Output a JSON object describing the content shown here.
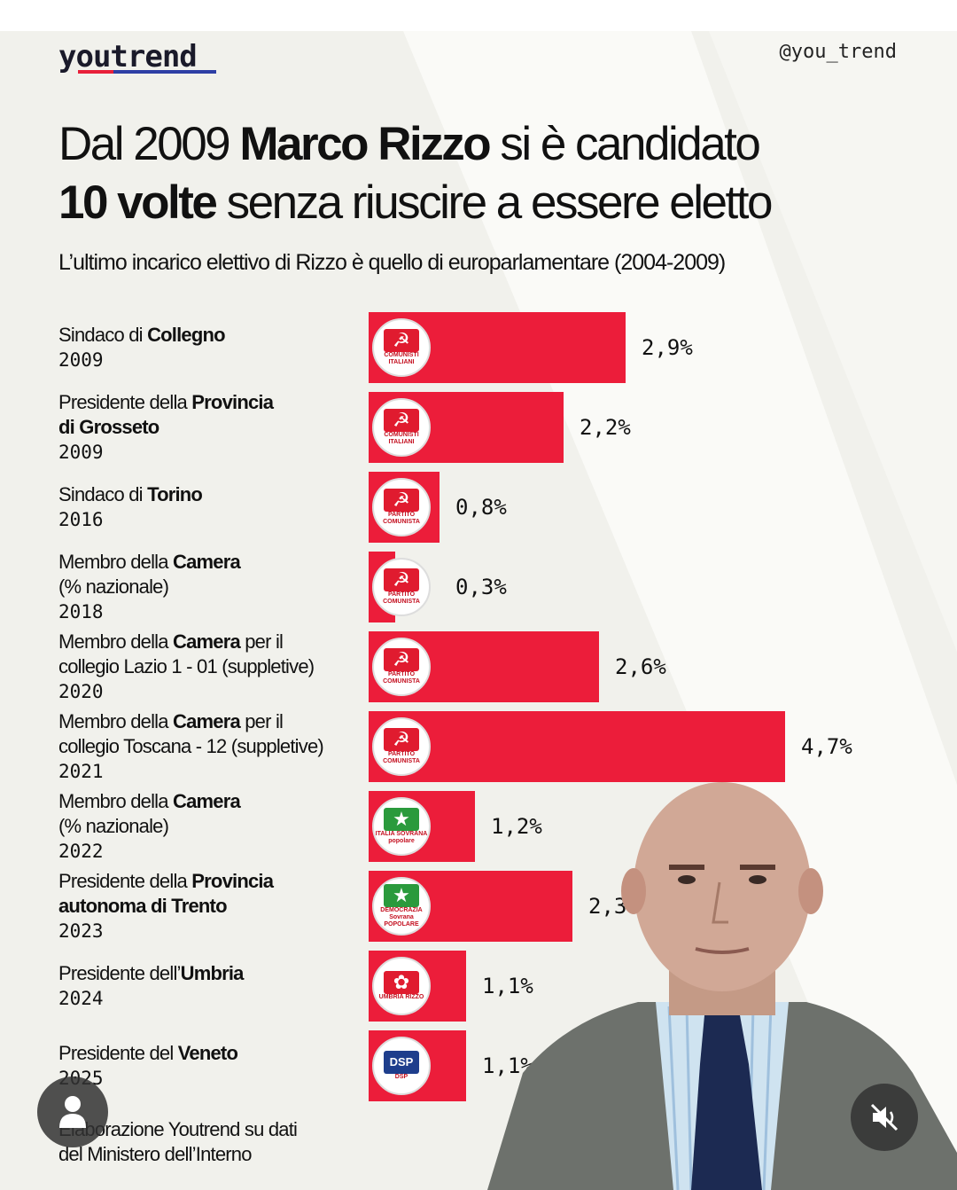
{
  "brand": {
    "logo": "youtrend",
    "handle": "@you_trend"
  },
  "title": {
    "p1": "Dal 2009 ",
    "b1": "Marco Rizzo",
    "p2": " si è candidato",
    "b2": "10 volte",
    "p3": " senza riuscire a essere eletto"
  },
  "subtitle": "L’ultimo incarico elettivo di Rizzo è quello di europarlamentare (2004-2009)",
  "source": [
    "Elaborazione Youtrend su dati",
    "del Ministero dell’Interno"
  ],
  "colors": {
    "bar": "#ec1d3a",
    "background": "#f1f1ec"
  },
  "chart_data": {
    "type": "bar",
    "orientation": "horizontal",
    "unit": "%",
    "categories": [
      "Sindaco di Collegno 2009",
      "Presidente della Provincia di Grosseto 2009",
      "Sindaco di Torino 2016",
      "Membro della Camera (% nazionale) 2018",
      "Membro della Camera per il collegio Lazio 1 - 01 (suppletive) 2020",
      "Membro della Camera per il collegio Toscana - 12 (suppletive) 2021",
      "Membro della Camera (% nazionale) 2022",
      "Presidente della Provincia autonoma di Trento 2023",
      "Presidente dell’Umbria 2024",
      "Presidente del Veneto 2025"
    ],
    "values": [
      2.9,
      2.2,
      0.8,
      0.3,
      2.6,
      4.7,
      1.2,
      2.3,
      1.1,
      1.1
    ],
    "rows": [
      {
        "lines": [
          [
            [
              "Sindaco di ",
              0
            ],
            [
              "Collegno",
              1
            ]
          ]
        ],
        "year": "2009",
        "value_label": "2,9%",
        "logo": {
          "icon": "hammer-sickle",
          "text": "COMUNISTI ITALIANI"
        }
      },
      {
        "lines": [
          [
            [
              "Presidente della ",
              0
            ],
            [
              "Provincia",
              1
            ]
          ],
          [
            [
              "di Grosseto",
              1
            ]
          ]
        ],
        "year": "2009",
        "value_label": "2,2%",
        "logo": {
          "icon": "hammer-sickle",
          "text": "COMUNISTI ITALIANI"
        }
      },
      {
        "lines": [
          [
            [
              "Sindaco di ",
              0
            ],
            [
              "Torino",
              1
            ]
          ]
        ],
        "year": "2016",
        "value_label": "0,8%",
        "logo": {
          "icon": "hammer-sickle",
          "text": "PARTITO COMUNISTA"
        }
      },
      {
        "lines": [
          [
            [
              "Membro della ",
              0
            ],
            [
              "Camera",
              1
            ]
          ],
          [
            [
              "(% nazionale)",
              0
            ]
          ]
        ],
        "year": "2018",
        "value_label": "0,3%",
        "logo": {
          "icon": "hammer-sickle",
          "text": "PARTITO COMUNISTA"
        }
      },
      {
        "lines": [
          [
            [
              "Membro della ",
              0
            ],
            [
              "Camera",
              1
            ],
            [
              " per il",
              0
            ]
          ],
          [
            [
              "collegio Lazio 1 - 01 (suppletive)",
              0
            ]
          ]
        ],
        "year": "2020",
        "value_label": "2,6%",
        "logo": {
          "icon": "hammer-sickle",
          "text": "PARTITO COMUNISTA"
        }
      },
      {
        "lines": [
          [
            [
              "Membro della ",
              0
            ],
            [
              "Camera",
              1
            ],
            [
              " per il",
              0
            ]
          ],
          [
            [
              "collegio Toscana - 12 (suppletive)",
              0
            ]
          ]
        ],
        "year": "2021",
        "value_label": "4,7%",
        "logo": {
          "icon": "hammer-sickle",
          "text": "PARTITO COMUNISTA"
        }
      },
      {
        "lines": [
          [
            [
              "Membro della ",
              0
            ],
            [
              "Camera",
              1
            ]
          ],
          [
            [
              "(% nazionale)",
              0
            ]
          ]
        ],
        "year": "2022",
        "value_label": "1,2%",
        "logo": {
          "icon": "flag",
          "text": "ITALIA SOVRANA popolare"
        }
      },
      {
        "lines": [
          [
            [
              "Presidente della ",
              0
            ],
            [
              "Provincia",
              1
            ]
          ],
          [
            [
              "autonoma di Trento",
              1
            ]
          ]
        ],
        "year": "2023",
        "value_label": "2,3%",
        "logo": {
          "icon": "flag",
          "text": "DEMOCRAZIA Sovrana POPOLARE"
        }
      },
      {
        "lines": [
          [
            [
              "Presidente dell’",
              0
            ],
            [
              "Umbria",
              1
            ]
          ]
        ],
        "year": "2024",
        "value_label": "1,1%",
        "logo": {
          "icon": "leaf",
          "text": "UMBRIA RIZZO"
        }
      },
      {
        "lines": [
          [
            [
              "Presidente del ",
              0
            ],
            [
              "Veneto",
              1
            ]
          ]
        ],
        "year": "2025",
        "value_label": "1,1%",
        "logo": {
          "icon": "dsp",
          "text": "DSP"
        }
      }
    ]
  }
}
